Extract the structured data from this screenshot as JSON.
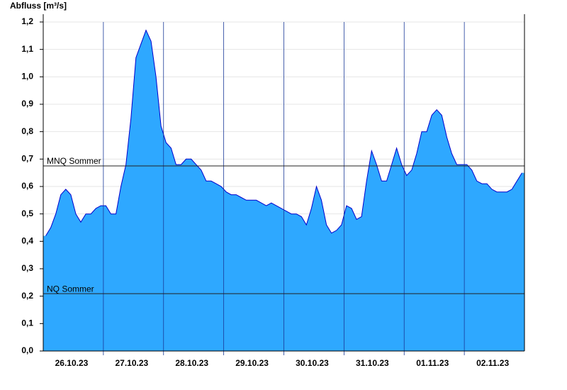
{
  "chart_data": {
    "type": "area",
    "y_label": "Abfluss [m³/s]",
    "categories": [
      null,
      null,
      null,
      null,
      null,
      null,
      "26.10.23",
      null,
      null,
      null,
      null,
      null,
      null,
      null,
      null,
      null,
      null,
      null,
      "27.10.23",
      null,
      null,
      null,
      null,
      null,
      null,
      null,
      null,
      null,
      null,
      null,
      "28.10.23",
      null,
      null,
      null,
      null,
      null,
      null,
      null,
      null,
      null,
      null,
      null,
      "29.10.23",
      null,
      null,
      null,
      null,
      null,
      null,
      null,
      null,
      null,
      null,
      null,
      "30.10.23",
      null,
      null,
      null,
      null,
      null,
      null,
      null,
      null,
      null,
      null,
      null,
      "31.10.23",
      null,
      null,
      null,
      null,
      null,
      null,
      null,
      null,
      null,
      null,
      null,
      "01.11.23",
      null,
      null,
      null,
      null,
      null,
      null,
      null,
      null,
      null,
      null,
      null,
      "02.11.23",
      null,
      null,
      null,
      null,
      null
    ],
    "values": [
      0.42,
      0.45,
      0.5,
      0.57,
      0.59,
      0.57,
      0.5,
      0.47,
      0.5,
      0.5,
      0.52,
      0.53,
      0.53,
      0.5,
      0.5,
      0.6,
      0.68,
      0.85,
      1.07,
      1.12,
      1.17,
      1.13,
      1.0,
      0.82,
      0.76,
      0.74,
      0.68,
      0.68,
      0.7,
      0.7,
      0.68,
      0.66,
      0.62,
      0.62,
      0.61,
      0.6,
      0.58,
      0.57,
      0.57,
      0.56,
      0.55,
      0.55,
      0.55,
      0.54,
      0.53,
      0.54,
      0.53,
      0.52,
      0.51,
      0.5,
      0.5,
      0.49,
      0.46,
      0.52,
      0.6,
      0.55,
      0.46,
      0.43,
      0.44,
      0.46,
      0.53,
      0.52,
      0.48,
      0.49,
      0.62,
      0.73,
      0.68,
      0.62,
      0.62,
      0.68,
      0.74,
      0.68,
      0.64,
      0.66,
      0.72,
      0.8,
      0.8,
      0.86,
      0.88,
      0.86,
      0.78,
      0.72,
      0.68,
      0.68,
      0.68,
      0.66,
      0.62,
      0.61,
      0.61,
      0.59,
      0.58,
      0.58,
      0.58,
      0.59,
      0.62,
      0.65
    ],
    "color": "#2ea8ff",
    "line_color": "#0000cc",
    "ylim": [
      0,
      1.2
    ],
    "yticks": [
      {
        "value": 0,
        "label": "0,0"
      },
      {
        "value": 0.1,
        "label": "0,1"
      },
      {
        "value": 0.2,
        "label": "0,2"
      },
      {
        "value": 0.3,
        "label": "0,3"
      },
      {
        "value": 0.4,
        "label": "0,4"
      },
      {
        "value": 0.5,
        "label": "0,5"
      },
      {
        "value": 0.6,
        "label": "0,6"
      },
      {
        "value": 0.7,
        "label": "0,7"
      },
      {
        "value": 0.8,
        "label": "0,8"
      },
      {
        "value": 0.9,
        "label": "0,9"
      },
      {
        "value": 1.0,
        "label": "1,0"
      },
      {
        "value": 1.1,
        "label": "1,1"
      },
      {
        "value": 1.2,
        "label": "1,2"
      }
    ],
    "grid": true,
    "reference_lines": [
      {
        "label": "MNQ Sommer",
        "value": 0.675
      },
      {
        "label": "NQ Sommer",
        "value": 0.209
      }
    ]
  }
}
